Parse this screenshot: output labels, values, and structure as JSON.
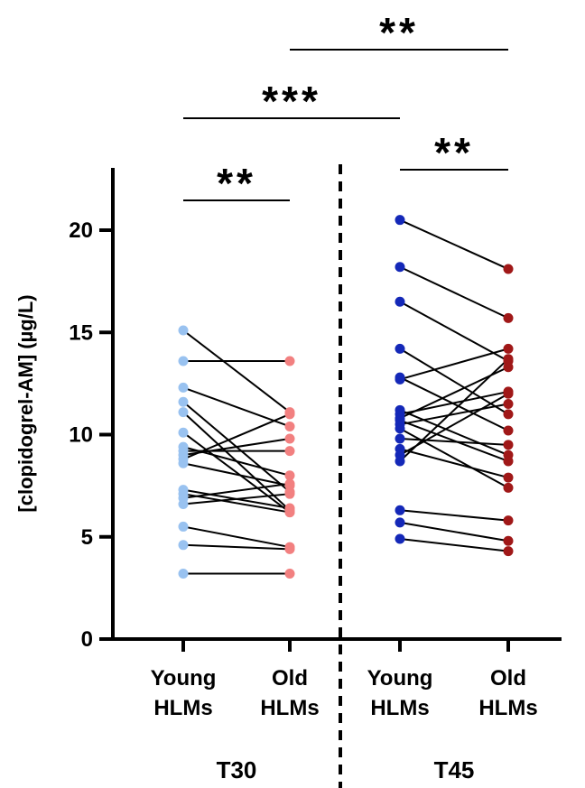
{
  "chart_data": {
    "type": "scatter",
    "subtype": "paired-dot-plot",
    "title": "",
    "ylabel": "[clopidogrel-AM] (µg/L)",
    "ylim": [
      0,
      22
    ],
    "yticks": [
      0,
      5,
      10,
      15,
      20
    ],
    "grid": false,
    "categories": [
      {
        "line1": "Young",
        "line2": "HLMs"
      },
      {
        "line1": "Old",
        "line2": "HLMs"
      },
      {
        "line1": "Young",
        "line2": "HLMs"
      },
      {
        "line1": "Old",
        "line2": "HLMs"
      }
    ],
    "groups": [
      {
        "label": "T30",
        "category_indices": [
          0,
          1
        ]
      },
      {
        "label": "T45",
        "category_indices": [
          2,
          3
        ]
      }
    ],
    "colors": {
      "young_t30": "#99c2f0",
      "old_t30": "#f28080",
      "young_t45": "#1428b8",
      "old_t45": "#a01818",
      "pair_line": "#000000"
    },
    "paired_series": [
      {
        "group": "T30",
        "color_young": "#99c2f0",
        "color_old": "#f28080",
        "pairs": [
          [
            15.1,
            11.1
          ],
          [
            12.3,
            10.4
          ],
          [
            11.6,
            7.2
          ],
          [
            11.1,
            6.3
          ],
          [
            10.1,
            6.2
          ],
          [
            9.4,
            8.0
          ],
          [
            9.2,
            9.2
          ],
          [
            9.0,
            9.8
          ],
          [
            8.8,
            11.0
          ],
          [
            8.6,
            7.5
          ],
          [
            7.3,
            6.4
          ],
          [
            7.1,
            6.2
          ],
          [
            6.9,
            7.6
          ],
          [
            6.6,
            7.1
          ],
          [
            5.5,
            4.5
          ],
          [
            4.6,
            4.4
          ],
          [
            3.2,
            3.2
          ],
          [
            13.6,
            13.6
          ]
        ]
      },
      {
        "group": "T45",
        "color_young": "#1428b8",
        "color_old": "#a01818",
        "pairs": [
          [
            20.5,
            18.1
          ],
          [
            18.2,
            15.7
          ],
          [
            16.5,
            13.6
          ],
          [
            14.2,
            11.0
          ],
          [
            12.8,
            10.2
          ],
          [
            12.7,
            14.2
          ],
          [
            11.2,
            9.0
          ],
          [
            11.0,
            12.1
          ],
          [
            10.8,
            13.3
          ],
          [
            10.7,
            8.7
          ],
          [
            10.5,
            11.5
          ],
          [
            10.3,
            7.4
          ],
          [
            9.8,
            9.5
          ],
          [
            9.3,
            7.9
          ],
          [
            9.0,
            12.0
          ],
          [
            8.7,
            13.7
          ],
          [
            6.3,
            5.8
          ],
          [
            5.7,
            4.8
          ],
          [
            4.9,
            4.3
          ]
        ]
      }
    ],
    "significance": [
      {
        "label": "**",
        "from": 0,
        "to": 1
      },
      {
        "label": "**",
        "from": 2,
        "to": 3
      },
      {
        "label": "***",
        "from": 0,
        "to": 2
      },
      {
        "label": "**",
        "from": 1,
        "to": 3
      }
    ]
  }
}
